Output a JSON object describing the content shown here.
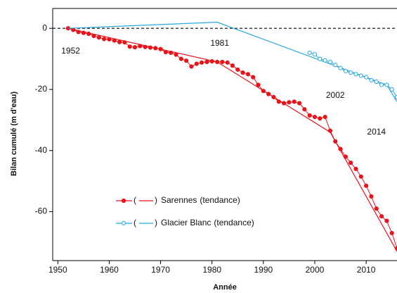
{
  "chart_data": {
    "type": "line",
    "x_label": "Année",
    "y_label": "Bilan cumulé (m d'eau)",
    "xlim": [
      1949,
      2016
    ],
    "ylim": [
      -76,
      6.5
    ],
    "xticks": [
      1950,
      1960,
      1970,
      1980,
      1990,
      2000,
      2010
    ],
    "yticks": [
      0,
      -20,
      -40,
      -60
    ],
    "zero_line": 0,
    "annotations": [
      {
        "text": "1952",
        "x": 1952.5,
        "y": -7.5
      },
      {
        "text": "1981",
        "x": 1981.5,
        "y": -5
      },
      {
        "text": "2002",
        "x": 2004,
        "y": -22
      },
      {
        "text": "2014",
        "x": 2012,
        "y": -34
      }
    ],
    "legend_brackets": [
      "(",
      ")"
    ],
    "series": [
      {
        "name": "Sarennes",
        "trend_label": "(tendance)",
        "color": "#e8131b",
        "marker": "filled",
        "x": [
          1952,
          1953,
          1954,
          1955,
          1956,
          1957,
          1958,
          1959,
          1960,
          1961,
          1962,
          1963,
          1964,
          1965,
          1966,
          1967,
          1968,
          1969,
          1970,
          1971,
          1972,
          1973,
          1974,
          1975,
          1976,
          1977,
          1978,
          1979,
          1980,
          1981,
          1982,
          1983,
          1984,
          1985,
          1986,
          1987,
          1988,
          1989,
          1990,
          1991,
          1992,
          1993,
          1994,
          1995,
          1996,
          1997,
          1998,
          1999,
          2000,
          2001,
          2002,
          2003,
          2004,
          2005,
          2006,
          2007,
          2008,
          2009,
          2010,
          2011,
          2012,
          2013,
          2014,
          2015,
          2016
        ],
        "values": [
          0,
          -0.5,
          -1.2,
          -1.5,
          -1.8,
          -2.5,
          -3,
          -3.5,
          -3.6,
          -4,
          -4.5,
          -4.6,
          -6,
          -6.2,
          -5.8,
          -6.1,
          -6.3,
          -6.5,
          -6.8,
          -7.8,
          -8,
          -8.6,
          -10,
          -10.6,
          -12.5,
          -11.6,
          -11.2,
          -11,
          -10.8,
          -11,
          -11,
          -11.2,
          -12.2,
          -13.5,
          -14.5,
          -15,
          -16,
          -18.5,
          -20.5,
          -21.5,
          -22.5,
          -24,
          -24.5,
          -24.2,
          -24,
          -24.5,
          -26.5,
          -28.5,
          -29,
          -29.5,
          -29,
          -33.5,
          -37,
          -39.5,
          -42,
          -44,
          -46,
          -48.5,
          -51.5,
          -55,
          -59,
          -61.5,
          -63,
          -67,
          -72
        ],
        "trend_x": [
          1952,
          1981,
          2003,
          2016
        ],
        "trend_values": [
          0,
          -11,
          -34,
          -73
        ]
      },
      {
        "name": "Glacier Blanc",
        "trend_label": "(tendance)",
        "color": "#29a8e0",
        "marker": "open",
        "x": [
          1999,
          2000,
          2001,
          2002,
          2003,
          2004,
          2005,
          2006,
          2007,
          2008,
          2009,
          2010,
          2011,
          2012,
          2013,
          2014,
          2015,
          2016
        ],
        "values": [
          -8,
          -8.5,
          -10,
          -10.5,
          -11,
          -12,
          -13,
          -14,
          -14.5,
          -15,
          -15.5,
          -16,
          -17,
          -17.5,
          -18.5,
          -18.5,
          -20,
          -22.5
        ],
        "trend_x": [
          1952,
          1981,
          2014,
          2016
        ],
        "trend_values": [
          0,
          2,
          -18.5,
          -24
        ]
      }
    ]
  }
}
